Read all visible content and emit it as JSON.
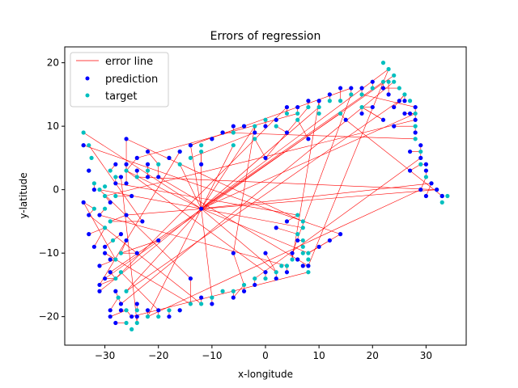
{
  "chart_data": {
    "type": "scatter",
    "title": "Errors of regression",
    "xlabel": "x-longitude",
    "ylabel": "y-latitude",
    "xlim": [
      -37.5,
      37.5
    ],
    "ylim": [
      -24.5,
      22.5
    ],
    "xticks": [
      -30,
      -20,
      -10,
      0,
      10,
      20,
      30
    ],
    "yticks": [
      -20,
      -10,
      0,
      10,
      20
    ],
    "xtick_labels": [
      "−30",
      "−20",
      "−10",
      "0",
      "10",
      "20",
      "30"
    ],
    "ytick_labels": [
      "−20",
      "−10",
      "0",
      "10",
      "20"
    ],
    "legend": {
      "position": "top-left",
      "entries": [
        "error line",
        "prediction",
        "target"
      ]
    },
    "colors": {
      "error_line": "#ff0000",
      "prediction": "#0000ff",
      "target": "#00bfbf"
    },
    "series": [
      {
        "name": "target",
        "points": [
          [
            -34,
            9
          ],
          [
            -34,
            7
          ],
          [
            -33,
            7
          ],
          [
            -32.5,
            5
          ],
          [
            -33,
            3
          ],
          [
            -32,
            1
          ],
          [
            -31,
            0
          ],
          [
            -30,
            -1
          ],
          [
            -30,
            -3
          ],
          [
            -29,
            -5
          ],
          [
            -28.5,
            -8
          ],
          [
            -28,
            -11
          ],
          [
            -28,
            -14
          ],
          [
            -27.5,
            -17
          ],
          [
            -26,
            -19
          ],
          [
            -26,
            -21
          ],
          [
            -25,
            -22
          ],
          [
            -24,
            -21
          ],
          [
            -22,
            -20
          ],
          [
            -20,
            -20
          ],
          [
            -18,
            -19
          ],
          [
            -16,
            -19
          ],
          [
            -14,
            -18
          ],
          [
            -12,
            -18
          ],
          [
            -10,
            -17
          ],
          [
            -8,
            -16
          ],
          [
            -6,
            -16
          ],
          [
            -4,
            -15
          ],
          [
            -2,
            -14
          ],
          [
            0,
            -14
          ],
          [
            2,
            -13
          ],
          [
            3,
            -12
          ],
          [
            4,
            -12
          ],
          [
            5,
            -11
          ],
          [
            6,
            -11
          ],
          [
            7,
            -10
          ],
          [
            8,
            -10
          ],
          [
            8,
            -11
          ],
          [
            8,
            -12
          ],
          [
            8,
            -13
          ],
          [
            7,
            -9
          ],
          [
            7,
            -8
          ],
          [
            7,
            -6
          ],
          [
            6,
            -4
          ],
          [
            7,
            -5
          ],
          [
            6,
            -7
          ],
          [
            -29,
            3
          ],
          [
            -28,
            2
          ],
          [
            -26,
            3
          ],
          [
            -24,
            2
          ],
          [
            -22,
            3
          ],
          [
            -20,
            4
          ],
          [
            -18,
            5
          ],
          [
            -16,
            6
          ],
          [
            -14,
            7
          ],
          [
            -12,
            7
          ],
          [
            -10,
            8
          ],
          [
            -8,
            9
          ],
          [
            -6,
            9
          ],
          [
            -4,
            10
          ],
          [
            -2,
            10
          ],
          [
            0,
            11
          ],
          [
            2,
            11
          ],
          [
            4,
            12
          ],
          [
            6,
            12
          ],
          [
            8,
            13
          ],
          [
            10,
            13
          ],
          [
            12,
            14
          ],
          [
            14,
            14
          ],
          [
            16,
            15
          ],
          [
            18,
            15
          ],
          [
            20,
            16
          ],
          [
            22,
            17
          ],
          [
            23,
            17
          ],
          [
            24,
            17
          ],
          [
            25,
            16
          ],
          [
            26,
            15
          ],
          [
            27,
            14
          ],
          [
            28,
            12
          ],
          [
            28,
            10
          ],
          [
            28,
            8
          ],
          [
            29,
            6
          ],
          [
            29,
            4
          ],
          [
            30,
            2
          ],
          [
            31,
            1
          ],
          [
            32,
            0
          ],
          [
            33,
            -1
          ],
          [
            33,
            -2
          ],
          [
            34,
            -1
          ],
          [
            22,
            20
          ],
          [
            23,
            19
          ],
          [
            24,
            18
          ],
          [
            -32,
            -3
          ],
          [
            -30,
            -6
          ],
          [
            -27,
            -10
          ],
          [
            -27,
            -13
          ],
          [
            -26,
            -16
          ],
          [
            -30,
            0.5
          ],
          [
            -28,
            -1
          ],
          [
            -24,
            -19
          ],
          [
            -16,
            4
          ],
          [
            -14,
            5
          ],
          [
            -12,
            6
          ],
          [
            2,
            10
          ],
          [
            6,
            11
          ],
          [
            10,
            12
          ],
          [
            14,
            12
          ],
          [
            18,
            13
          ],
          [
            -6,
            7
          ],
          [
            -2,
            8
          ]
        ]
      },
      {
        "name": "prediction",
        "points": [
          [
            -34,
            -2
          ],
          [
            -33,
            3
          ],
          [
            -32,
            0
          ],
          [
            -31,
            -4
          ],
          [
            -30,
            -9
          ],
          [
            -31,
            -12
          ],
          [
            -31,
            -15
          ],
          [
            -29,
            -19
          ],
          [
            -28,
            -21
          ],
          [
            -27,
            -18
          ],
          [
            -24,
            -18
          ],
          [
            -22,
            -19
          ],
          [
            -20,
            -19
          ],
          [
            -18,
            -20
          ],
          [
            -16,
            -19
          ],
          [
            -14,
            -14
          ],
          [
            -12,
            -17
          ],
          [
            -10,
            -18
          ],
          [
            -6,
            -17
          ],
          [
            -4,
            -16
          ],
          [
            -2,
            -15
          ],
          [
            0,
            -13
          ],
          [
            2,
            -14
          ],
          [
            4,
            -13
          ],
          [
            5,
            -10
          ],
          [
            6,
            -11
          ],
          [
            7,
            -12
          ],
          [
            8,
            -12
          ],
          [
            10,
            -9
          ],
          [
            12,
            -8
          ],
          [
            14,
            -7
          ],
          [
            6,
            -8
          ],
          [
            4,
            -5
          ],
          [
            -30,
            -10
          ],
          [
            -29,
            -11
          ],
          [
            -29,
            -2
          ],
          [
            -28,
            1
          ],
          [
            -28,
            4
          ],
          [
            -26,
            4
          ],
          [
            -24,
            5
          ],
          [
            -24,
            3
          ],
          [
            -25,
            -1
          ],
          [
            -26,
            -4
          ],
          [
            -27,
            -7
          ],
          [
            -26,
            -8
          ],
          [
            -29,
            -13
          ],
          [
            -32,
            -9
          ],
          [
            -33,
            -7
          ],
          [
            -27,
            2
          ],
          [
            -26,
            1
          ],
          [
            -22,
            4
          ],
          [
            -20,
            2
          ],
          [
            -18,
            5
          ],
          [
            -16,
            6
          ],
          [
            -14,
            7
          ],
          [
            -12,
            4
          ],
          [
            -10,
            8
          ],
          [
            -8,
            9
          ],
          [
            -6,
            10
          ],
          [
            -4,
            10
          ],
          [
            -2,
            9
          ],
          [
            0,
            10
          ],
          [
            2,
            11
          ],
          [
            4,
            13
          ],
          [
            6,
            13
          ],
          [
            8,
            14
          ],
          [
            10,
            14
          ],
          [
            12,
            15
          ],
          [
            14,
            16
          ],
          [
            16,
            16
          ],
          [
            18,
            16
          ],
          [
            20,
            17
          ],
          [
            22,
            16
          ],
          [
            23,
            15
          ],
          [
            24,
            13
          ],
          [
            25,
            14
          ],
          [
            26,
            14
          ],
          [
            27,
            12
          ],
          [
            28,
            11
          ],
          [
            28,
            9
          ],
          [
            29,
            7
          ],
          [
            29,
            5
          ],
          [
            30,
            3
          ],
          [
            31,
            1
          ],
          [
            32,
            0
          ],
          [
            33,
            -1
          ],
          [
            26,
            12
          ],
          [
            28,
            13
          ],
          [
            30,
            4
          ],
          [
            27,
            3
          ],
          [
            -30,
            -14
          ],
          [
            -28,
            -16
          ],
          [
            -20,
            -8
          ],
          [
            -23,
            -5
          ],
          [
            -24,
            -10
          ],
          [
            -31,
            -16
          ],
          [
            -33,
            -4
          ],
          [
            -22,
            2
          ],
          [
            -34,
            7
          ],
          [
            -26,
            8
          ],
          [
            -22,
            6
          ],
          [
            -12,
            -3
          ],
          [
            0,
            5
          ],
          [
            4,
            9
          ],
          [
            8,
            8
          ],
          [
            15,
            11
          ],
          [
            18,
            12
          ],
          [
            20,
            13
          ],
          [
            22,
            11
          ],
          [
            24,
            10
          ],
          [
            27,
            6
          ],
          [
            29,
            0
          ],
          [
            30,
            -1
          ],
          [
            -24,
            -20
          ],
          [
            -25,
            -20
          ],
          [
            -29,
            -20
          ],
          [
            -27,
            -19
          ],
          [
            -6,
            -10
          ],
          [
            0,
            -10
          ],
          [
            2,
            -6
          ]
        ]
      }
    ],
    "hub_point": [
      -12,
      -3
    ]
  }
}
